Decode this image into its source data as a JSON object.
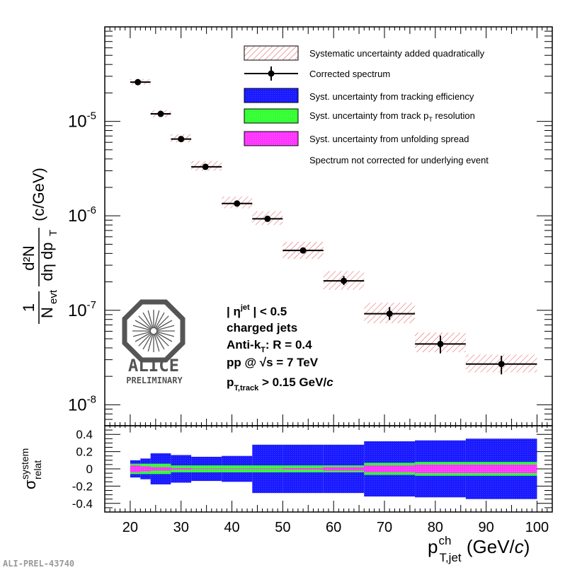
{
  "chart_data": [
    {
      "type": "scatter",
      "role": "spectrum",
      "ylabel_fraction_num": "1",
      "ylabel_fraction_den": "N",
      "ylabel_fraction_den_sub": "evt",
      "ylabel_deriv_num": "d²N",
      "ylabel_deriv_den_1": "dη dp",
      "ylabel_deriv_den_sub": "T",
      "ylabel_unit": "(c/GeV)",
      "y_scale": "log",
      "ylim": [
        6e-09,
        0.0001
      ],
      "xlim": [
        15,
        103
      ],
      "y_tick_labels": [
        {
          "value": 1e-05,
          "base": "10",
          "exp": "-5"
        },
        {
          "value": 1e-06,
          "base": "10",
          "exp": "-6"
        },
        {
          "value": 1e-07,
          "base": "10",
          "exp": "-7"
        },
        {
          "value": 1e-08,
          "base": "10",
          "exp": "-8"
        }
      ],
      "series": [
        {
          "name": "Corrected spectrum",
          "points": [
            {
              "x": 21.5,
              "xlo": 20,
              "xhi": 24,
              "y": 2.6e-05,
              "ylo": 2.5e-05,
              "yhi": 2.7e-05,
              "syslo": 2.45e-05,
              "syshi": 2.8e-05
            },
            {
              "x": 26,
              "xlo": 24,
              "xhi": 28,
              "y": 1.2e-05,
              "ylo": 1.15e-05,
              "yhi": 1.25e-05,
              "syslo": 1.1e-05,
              "syshi": 1.32e-05
            },
            {
              "x": 30,
              "xlo": 28,
              "xhi": 32,
              "y": 6.5e-06,
              "ylo": 6.3e-06,
              "yhi": 6.7e-06,
              "syslo": 6e-06,
              "syshi": 7.3e-06
            },
            {
              "x": 34.8,
              "xlo": 32,
              "xhi": 38,
              "y": 3.3e-06,
              "ylo": 3.2e-06,
              "yhi": 3.4e-06,
              "syslo": 3e-06,
              "syshi": 3.8e-06
            },
            {
              "x": 41,
              "xlo": 38,
              "xhi": 44,
              "y": 1.35e-06,
              "ylo": 1.3e-06,
              "yhi": 1.4e-06,
              "syslo": 1.2e-06,
              "syshi": 1.6e-06
            },
            {
              "x": 47,
              "xlo": 44,
              "xhi": 50,
              "y": 9.3e-07,
              "ylo": 8.9e-07,
              "yhi": 9.7e-07,
              "syslo": 8e-07,
              "syshi": 1.12e-06
            },
            {
              "x": 54,
              "xlo": 50,
              "xhi": 58,
              "y": 4.3e-07,
              "ylo": 4.05e-07,
              "yhi": 4.55e-07,
              "syslo": 3.5e-07,
              "syshi": 5.3e-07
            },
            {
              "x": 62,
              "xlo": 58,
              "xhi": 66,
              "y": 2.05e-07,
              "ylo": 1.85e-07,
              "yhi": 2.3e-07,
              "syslo": 1.65e-07,
              "syshi": 2.6e-07
            },
            {
              "x": 71,
              "xlo": 66,
              "xhi": 76,
              "y": 9.2e-08,
              "ylo": 7.9e-08,
              "yhi": 1.08e-07,
              "syslo": 7.3e-08,
              "syshi": 1.2e-07
            },
            {
              "x": 81,
              "xlo": 76,
              "xhi": 86,
              "y": 4.4e-08,
              "ylo": 3.5e-08,
              "yhi": 5.4e-08,
              "syslo": 3.6e-08,
              "syshi": 5.8e-08
            },
            {
              "x": 93,
              "xlo": 86,
              "xhi": 100,
              "y": 2.7e-08,
              "ylo": 2.1e-08,
              "yhi": 3.3e-08,
              "syslo": 2.2e-08,
              "syshi": 3.4e-08
            }
          ]
        }
      ],
      "legend": [
        {
          "label": "Systematic uncertainty added quadratically",
          "marker": "hatch",
          "color": "#e05050"
        },
        {
          "label": "Corrected spectrum",
          "marker": "errorbar",
          "color": "#000000"
        },
        {
          "label": "Syst. uncertainty from tracking efficiency",
          "marker": "box",
          "color": "#1a1aff"
        },
        {
          "label_main": "Syst. uncertainty from track p",
          "label_sub": "T",
          "label_tail": " resolution",
          "marker": "box",
          "color": "#33ff33"
        },
        {
          "label": "Syst. uncertainty from unfolding spread",
          "marker": "box",
          "color": "#ff33ff"
        },
        {
          "label": "Spectrum not corrected for underlying event",
          "marker": "none",
          "color": "#000000"
        }
      ],
      "legend_position": "top-right",
      "annotations": {
        "eta_pre": "| η",
        "eta_sup": "jet",
        "eta_post": " | < 0.5",
        "line2": "charged jets",
        "line3_pre": "Anti-k",
        "line3_sub": "T",
        "line3_post": ": R = 0.4",
        "line4": "pp @ √s = 7 TeV",
        "line5_pre": "p",
        "line5_sub": "T,track",
        "line5_post": " > 0.15 GeV/",
        "line5_unit": "c"
      },
      "logo": {
        "name": "ALICE",
        "sub": "PRELIMINARY"
      }
    },
    {
      "type": "area",
      "role": "relative-systematics",
      "ylabel_main": "σ",
      "ylabel_sup": "system",
      "ylabel_sub": "relat",
      "ylim": [
        -0.5,
        0.5
      ],
      "y_ticks": [
        0.4,
        0.2,
        0,
        -0.2,
        -0.4
      ],
      "y_tick_labels": [
        "0.4",
        "0.2",
        "0",
        "-0.2",
        "-0.4"
      ],
      "xlim": [
        15,
        103
      ],
      "x_ticks": [
        20,
        30,
        40,
        50,
        60,
        70,
        80,
        90,
        100
      ],
      "x_tick_labels": [
        "20",
        "30",
        "40",
        "50",
        "60",
        "70",
        "80",
        "90",
        "100"
      ],
      "xlabel_main": "p",
      "xlabel_sup": "ch",
      "xlabel_sub": "T,jet",
      "xlabel_unit_pre": " (GeV/",
      "xlabel_unit_c": "c",
      "xlabel_unit_post": ")",
      "bin_edges": [
        20,
        22,
        24,
        28,
        32,
        38,
        44,
        50,
        58,
        66,
        76,
        86,
        100
      ],
      "series": [
        {
          "name": "Syst. uncertainty from tracking efficiency",
          "color": "#1a1aff",
          "values": [
            0.1,
            0.12,
            0.18,
            0.16,
            0.14,
            0.15,
            0.28,
            0.28,
            0.28,
            0.32,
            0.33,
            0.35
          ]
        },
        {
          "name": "Syst. uncertainty from track pT resolution",
          "color": "#33ff33",
          "values": [
            0.06,
            0.06,
            0.06,
            0.04,
            0.04,
            0.04,
            0.04,
            0.04,
            0.04,
            0.07,
            0.08,
            0.08
          ]
        },
        {
          "name": "Syst. uncertainty from unfolding spread",
          "color": "#ff33ff",
          "values": [
            0.04,
            0.03,
            0.02,
            0.01,
            0.005,
            0.005,
            0.005,
            0.01,
            0.02,
            0.04,
            0.05,
            0.05
          ]
        }
      ]
    }
  ],
  "footer_label": "ALI-PREL-43740"
}
